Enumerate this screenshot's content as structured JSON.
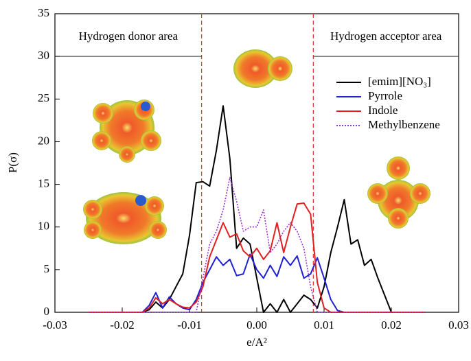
{
  "chart_data": {
    "type": "line",
    "x_label": "e/A²",
    "y_label": "P(σ)",
    "xlim": [
      -0.03,
      0.03
    ],
    "xticks": [
      {
        "value": -0.03,
        "label": "-0.03"
      },
      {
        "value": -0.02,
        "label": "-0.02"
      },
      {
        "value": -0.01,
        "label": "-0.01"
      },
      {
        "value": 0,
        "label": "0.00"
      },
      {
        "value": 0.01,
        "label": "0.01"
      },
      {
        "value": 0.02,
        "label": "0.02"
      },
      {
        "value": 0.03,
        "label": "0.03"
      }
    ],
    "ylim": [
      0,
      35
    ],
    "yticks": [
      0,
      5,
      10,
      15,
      20,
      25,
      30,
      35
    ],
    "annotations": [
      "Hydrogen donor area",
      "Hydrogen acceptor area"
    ],
    "vlines": [
      -0.0082,
      0.0084
    ],
    "hline": 30,
    "x": [
      -0.025,
      -0.024,
      -0.023,
      -0.022,
      -0.021,
      -0.02,
      -0.019,
      -0.018,
      -0.017,
      -0.016,
      -0.015,
      -0.014,
      -0.013,
      -0.012,
      -0.011,
      -0.01,
      -0.009,
      -0.008,
      -0.007,
      -0.006,
      -0.005,
      -0.004,
      -0.003,
      -0.002,
      -0.001,
      0,
      0.001,
      0.002,
      0.003,
      0.004,
      0.005,
      0.006,
      0.007,
      0.008,
      0.009,
      0.01,
      0.011,
      0.012,
      0.013,
      0.014,
      0.015,
      0.016,
      0.017,
      0.018,
      0.019,
      0.02,
      0.021,
      0.022,
      0.023,
      0.024,
      0.025
    ],
    "series": [
      {
        "name": "[emim][NO₃]",
        "color": "#000000",
        "dash": false,
        "values": [
          0,
          0,
          0,
          0,
          0,
          0,
          0,
          0,
          0,
          0.3,
          1.2,
          0.5,
          1.5,
          3,
          4.5,
          9,
          15.2,
          15.3,
          14.8,
          19,
          24.2,
          18,
          7.5,
          8.7,
          8,
          4,
          0,
          1,
          0,
          1.5,
          0,
          1,
          2,
          1.5,
          0.5,
          3,
          7,
          10,
          13.2,
          8,
          8.5,
          5.5,
          6.2,
          4,
          2,
          0,
          0,
          0,
          0,
          0,
          0
        ]
      },
      {
        "name": "Pyrrole",
        "color": "#1f1fd6",
        "dash": false,
        "values": [
          0,
          0,
          0,
          0,
          0,
          0,
          0,
          0,
          0,
          0.8,
          2.3,
          0.5,
          1.8,
          1,
          0.5,
          0.3,
          1.5,
          3.5,
          5,
          6.5,
          5.5,
          6.2,
          4.3,
          4.5,
          6.8,
          5,
          4,
          5.5,
          4.2,
          6.5,
          5.5,
          6.6,
          4,
          4.5,
          6.4,
          4,
          1.5,
          0.2,
          0,
          0,
          0,
          0,
          0,
          0,
          0,
          0,
          0,
          0,
          0,
          0,
          0
        ]
      },
      {
        "name": "Indole",
        "color": "#e01f1f",
        "dash": false,
        "values": [
          0,
          0,
          0,
          0,
          0,
          0,
          0,
          0,
          0,
          0.5,
          1.7,
          1,
          1.5,
          1,
          0.6,
          0.5,
          1.2,
          3,
          6.5,
          8.5,
          10.5,
          8.8,
          9.2,
          7.2,
          6.5,
          7.5,
          6.2,
          7.2,
          10.5,
          7,
          10,
          12.7,
          12.8,
          11.5,
          3.5,
          0.5,
          0,
          0,
          0,
          0,
          0,
          0,
          0,
          0,
          0,
          0,
          0,
          0,
          0,
          0,
          0
        ]
      },
      {
        "name": "Methylbenzene",
        "color": "#9b30d0",
        "dash": true,
        "values": [
          0,
          0,
          0,
          0,
          0,
          0,
          0,
          0,
          0,
          0,
          0,
          0,
          0,
          0,
          0,
          0,
          0,
          4,
          8,
          9.5,
          12,
          15.8,
          13,
          9.5,
          10,
          10,
          12,
          7,
          8,
          9.5,
          10.5,
          9.5,
          7.5,
          3,
          0,
          0,
          0,
          0,
          0,
          0,
          0,
          0,
          0,
          0,
          0,
          0,
          0,
          0,
          0,
          0,
          0
        ]
      }
    ]
  }
}
